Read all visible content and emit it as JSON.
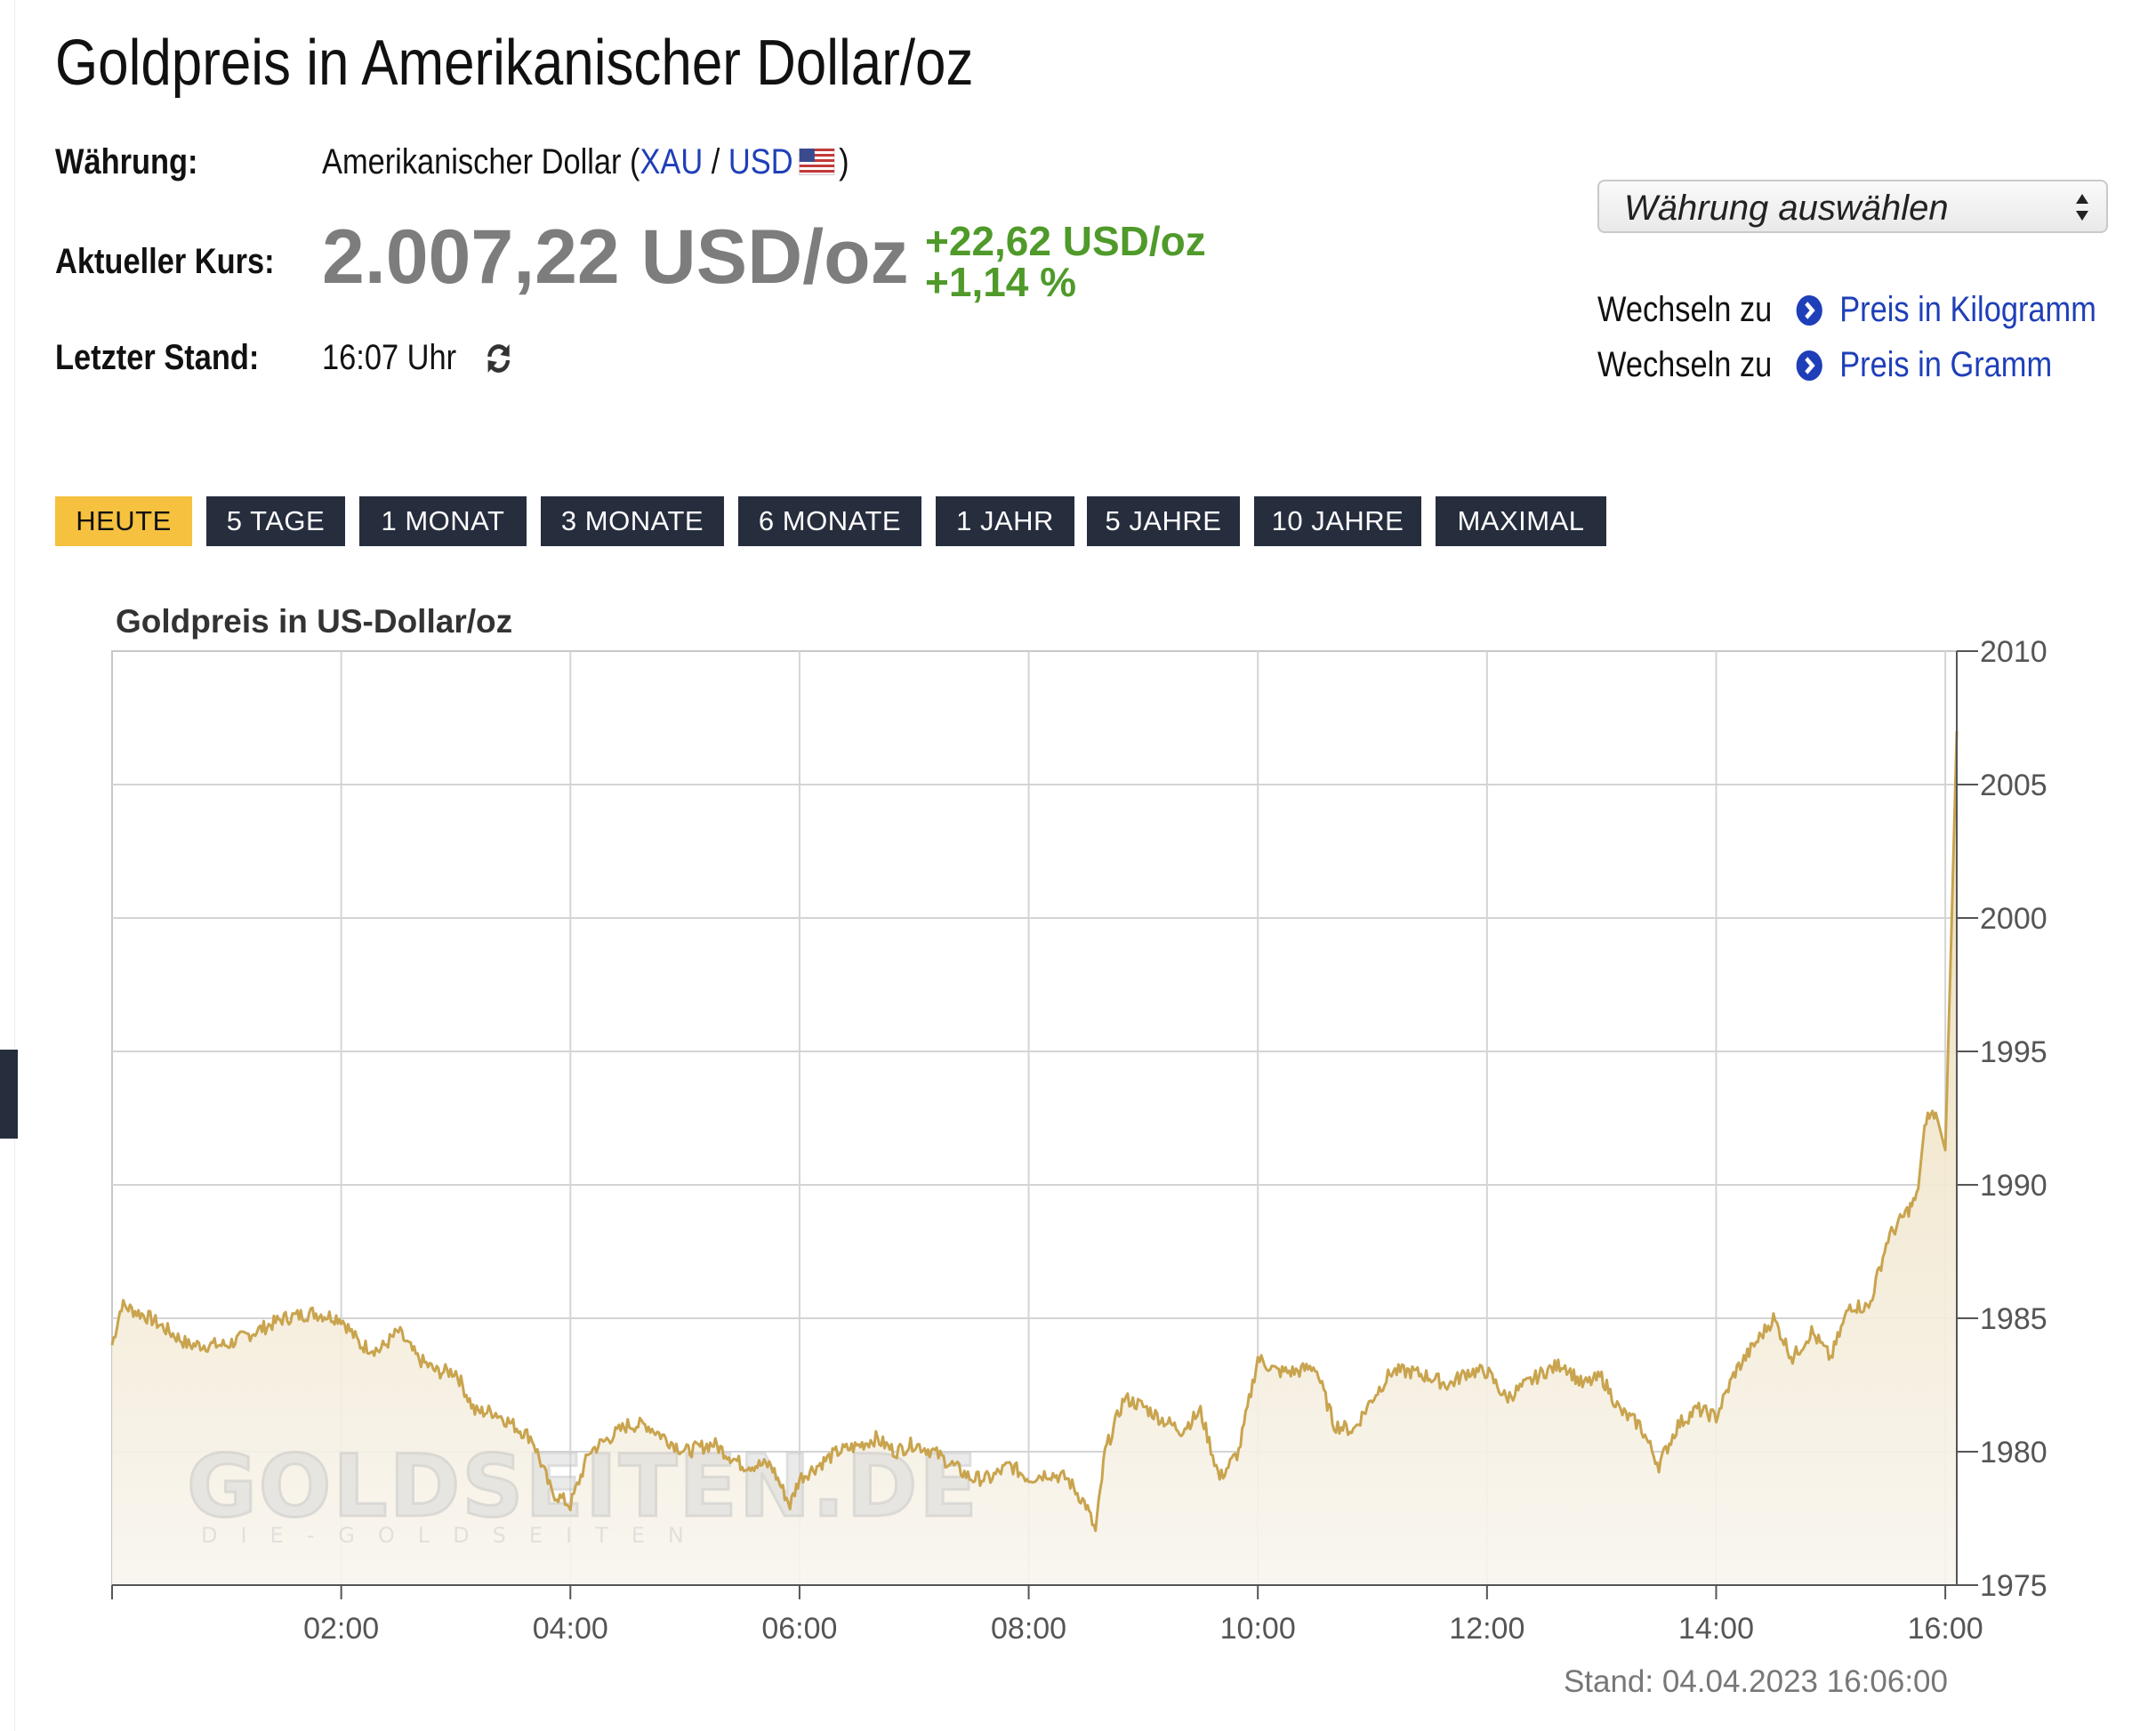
{
  "page_title": "Goldpreis in Amerikanischer Dollar/oz",
  "info": {
    "currency_label": "Währung:",
    "currency_name": "Amerikanischer Dollar",
    "paren_open": "(",
    "code_a": "XAU",
    "slash": "/",
    "code_b": "USD",
    "paren_close": ")",
    "rate_label": "Aktueller Kurs:",
    "price": "2.007,22 USD/oz",
    "change_abs": "+22,62 USD/oz",
    "change_pct": "+1,14 %",
    "last_label": "Letzter Stand:",
    "last_time": "16:07 Uhr"
  },
  "currency_select": {
    "label": "Währung auswählen"
  },
  "switch_links": [
    {
      "prefix": "Wechseln zu",
      "label": "Preis in Kilogramm"
    },
    {
      "prefix": "Wechseln zu",
      "label": "Preis in Gramm"
    }
  ],
  "range_tabs": [
    {
      "label": "HEUTE",
      "active": true
    },
    {
      "label": "5 TAGE",
      "active": false
    },
    {
      "label": "1 MONAT",
      "active": false
    },
    {
      "label": "3 MONATE",
      "active": false
    },
    {
      "label": "6 MONATE",
      "active": false
    },
    {
      "label": "1 JAHR",
      "active": false
    },
    {
      "label": "5 JAHRE",
      "active": false
    },
    {
      "label": "10 JAHRE",
      "active": false
    },
    {
      "label": "MAXIMAL",
      "active": false
    }
  ],
  "colors": {
    "line": "#c9a44e",
    "fill": "#f3ecdc",
    "accent": "#f6c13f",
    "tab": "#262d3d",
    "up": "#4f9a2a",
    "link": "#1f3fb8"
  },
  "chart_data": {
    "type": "area",
    "title": "Goldpreis in US-Dollar/oz",
    "xlabel": "",
    "ylabel": "",
    "xlim": [
      "00:00",
      "16:06"
    ],
    "ylim": [
      1975,
      2010
    ],
    "y_ticks": [
      1975,
      1980,
      1985,
      1990,
      1995,
      2000,
      2005,
      2010
    ],
    "x_ticks": [
      "02:00",
      "04:00",
      "06:00",
      "08:00",
      "10:00",
      "12:00",
      "14:00",
      "16:00"
    ],
    "grid": true,
    "watermark": {
      "text": "GOLDSEITEN.DE",
      "subtext": "DIE-GOLDSEITEN"
    },
    "footer": "Stand: 04.04.2023 16:06:00",
    "series": [
      {
        "x": [
          "00:00",
          "00:05",
          "00:20",
          "00:40",
          "01:00",
          "01:15",
          "01:30",
          "01:45",
          "02:00",
          "02:10",
          "02:20",
          "02:30",
          "02:40",
          "02:50",
          "03:00",
          "03:10",
          "03:20",
          "03:30",
          "03:40",
          "03:50",
          "04:00",
          "04:10",
          "04:20",
          "04:30",
          "04:40",
          "04:50",
          "05:00",
          "05:15",
          "05:30",
          "05:45",
          "05:55",
          "06:00",
          "06:10",
          "06:20",
          "06:30",
          "06:40",
          "06:50",
          "07:00",
          "07:10",
          "07:20",
          "07:30",
          "07:40",
          "07:50",
          "08:00",
          "08:10",
          "08:20",
          "08:30",
          "08:35",
          "08:40",
          "08:50",
          "09:00",
          "09:10",
          "09:20",
          "09:30",
          "09:40",
          "09:50",
          "10:00",
          "10:10",
          "10:20",
          "10:30",
          "10:40",
          "10:50",
          "11:00",
          "11:10",
          "11:20",
          "11:30",
          "11:40",
          "11:50",
          "12:00",
          "12:10",
          "12:20",
          "12:30",
          "12:40",
          "12:50",
          "13:00",
          "13:10",
          "13:20",
          "13:30",
          "13:40",
          "13:50",
          "14:00",
          "14:10",
          "14:20",
          "14:30",
          "14:40",
          "14:50",
          "15:00",
          "15:10",
          "15:20",
          "15:30",
          "15:40",
          "15:45",
          "15:50",
          "15:55",
          "16:00",
          "16:03",
          "16:06"
        ],
        "y": [
          1984,
          1985.5,
          1985,
          1984,
          1984,
          1984.5,
          1985,
          1985.2,
          1985,
          1984,
          1983.8,
          1984.5,
          1983.5,
          1983,
          1983,
          1981.5,
          1981.5,
          1981,
          1980.5,
          1978.5,
          1978,
          1980,
          1980.5,
          1981,
          1981,
          1980.5,
          1980,
          1980.3,
          1979.5,
          1979.5,
          1978,
          1979,
          1979.5,
          1980,
          1980.2,
          1980.5,
          1980,
          1980.3,
          1980,
          1979.5,
          1979,
          1979,
          1979.5,
          1979,
          1979.2,
          1979,
          1978,
          1977,
          1980,
          1982,
          1981.7,
          1981.2,
          1980.8,
          1981.5,
          1979,
          1980,
          1983.5,
          1983,
          1983,
          1983.2,
          1981,
          1980.8,
          1982,
          1983,
          1983,
          1982.8,
          1982.5,
          1983,
          1983,
          1982,
          1982.5,
          1983,
          1983.3,
          1982.5,
          1982.8,
          1981.5,
          1981,
          1979.5,
          1981,
          1981.6,
          1981.3,
          1983,
          1984,
          1985,
          1983.5,
          1984.5,
          1983.5,
          1985.5,
          1985.4,
          1988,
          1989,
          1989.5,
          1992.5,
          1992.7,
          1991.3,
          1999,
          2007
        ]
      }
    ]
  }
}
